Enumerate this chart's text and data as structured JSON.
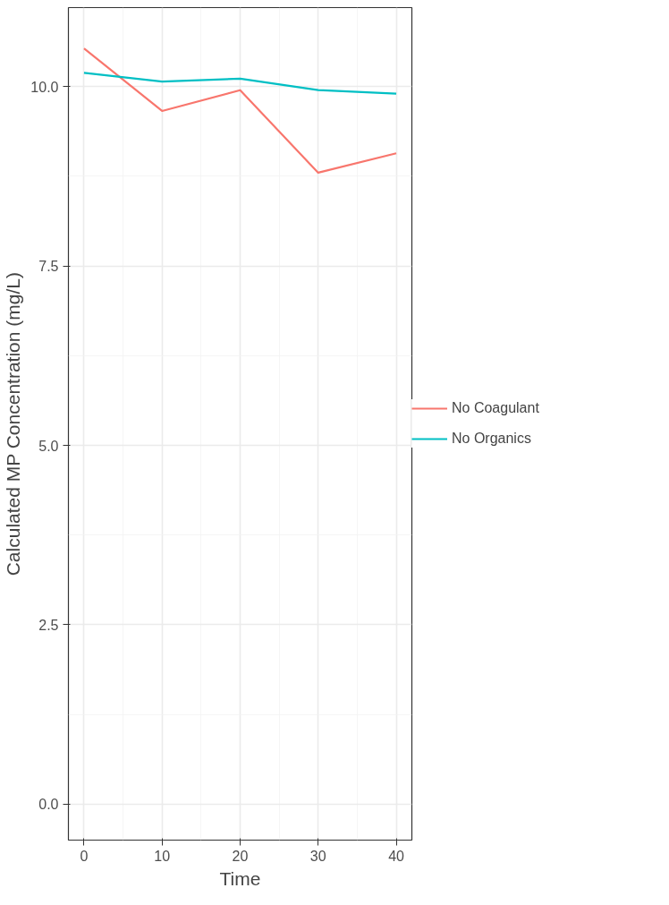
{
  "chart_data": {
    "type": "line",
    "xlabel": "Time",
    "ylabel": "Calculated MP Concentration (mg/L)",
    "x": [
      0,
      10,
      20,
      30,
      40
    ],
    "series": [
      {
        "name": "No Coagulant",
        "color": "#f8766d",
        "values": [
          10.53,
          9.66,
          9.95,
          8.8,
          9.07
        ]
      },
      {
        "name": "No Organics",
        "color": "#00bfc4",
        "values": [
          10.19,
          10.07,
          10.11,
          9.95,
          9.9
        ]
      }
    ],
    "xlim": [
      -2,
      42
    ],
    "ylim": [
      -0.5,
      11.1
    ],
    "xticks": [
      0,
      10,
      20,
      30,
      40
    ],
    "yticks": [
      {
        "value": 0,
        "label": "0.0"
      },
      {
        "value": 2.5,
        "label": "2.5"
      },
      {
        "value": 5,
        "label": "5.0"
      },
      {
        "value": 7.5,
        "label": "7.5"
      },
      {
        "value": 10,
        "label": "10.0"
      }
    ],
    "grid": true,
    "legend": "right",
    "line_style": "solid",
    "marker": "none"
  }
}
